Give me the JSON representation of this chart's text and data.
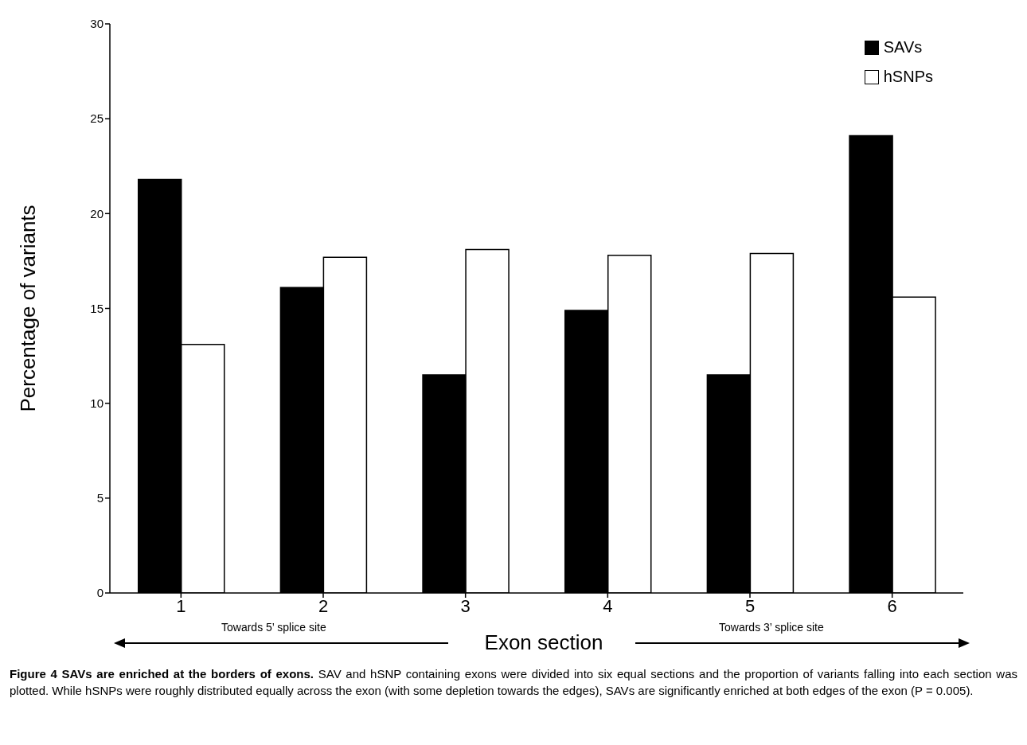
{
  "chart_data": {
    "type": "bar",
    "title": "Figure 4 SAVs are enriched at the borders of exons.",
    "xlabel": "Exon section",
    "ylabel": "Percentage of variants",
    "categories": [
      "1",
      "2",
      "3",
      "4",
      "5",
      "6"
    ],
    "series": [
      {
        "name": "SAVs",
        "color": "#000000",
        "values": [
          21.8,
          16.1,
          11.5,
          14.9,
          11.5,
          24.1
        ]
      },
      {
        "name": "hSNPs",
        "color": "#ffffff",
        "values": [
          13.1,
          17.7,
          18.1,
          17.8,
          17.9,
          15.6
        ]
      }
    ],
    "ylim": [
      0,
      30
    ],
    "yticks": [
      0,
      5,
      10,
      15,
      20,
      25,
      30
    ],
    "legend": "top right",
    "annotations": [
      "Towards 5’ splice site",
      "Towards 3’ splice site",
      "SAV and hSNP containing exons were divided into six equal sections and the proportion of variants falling into each section was plotted. While hSNPs were roughly distributed equally across the exon (with some depletion towards the edges), SAVs are significantly enriched at both edges of the exon (P = 0.005)."
    ]
  }
}
